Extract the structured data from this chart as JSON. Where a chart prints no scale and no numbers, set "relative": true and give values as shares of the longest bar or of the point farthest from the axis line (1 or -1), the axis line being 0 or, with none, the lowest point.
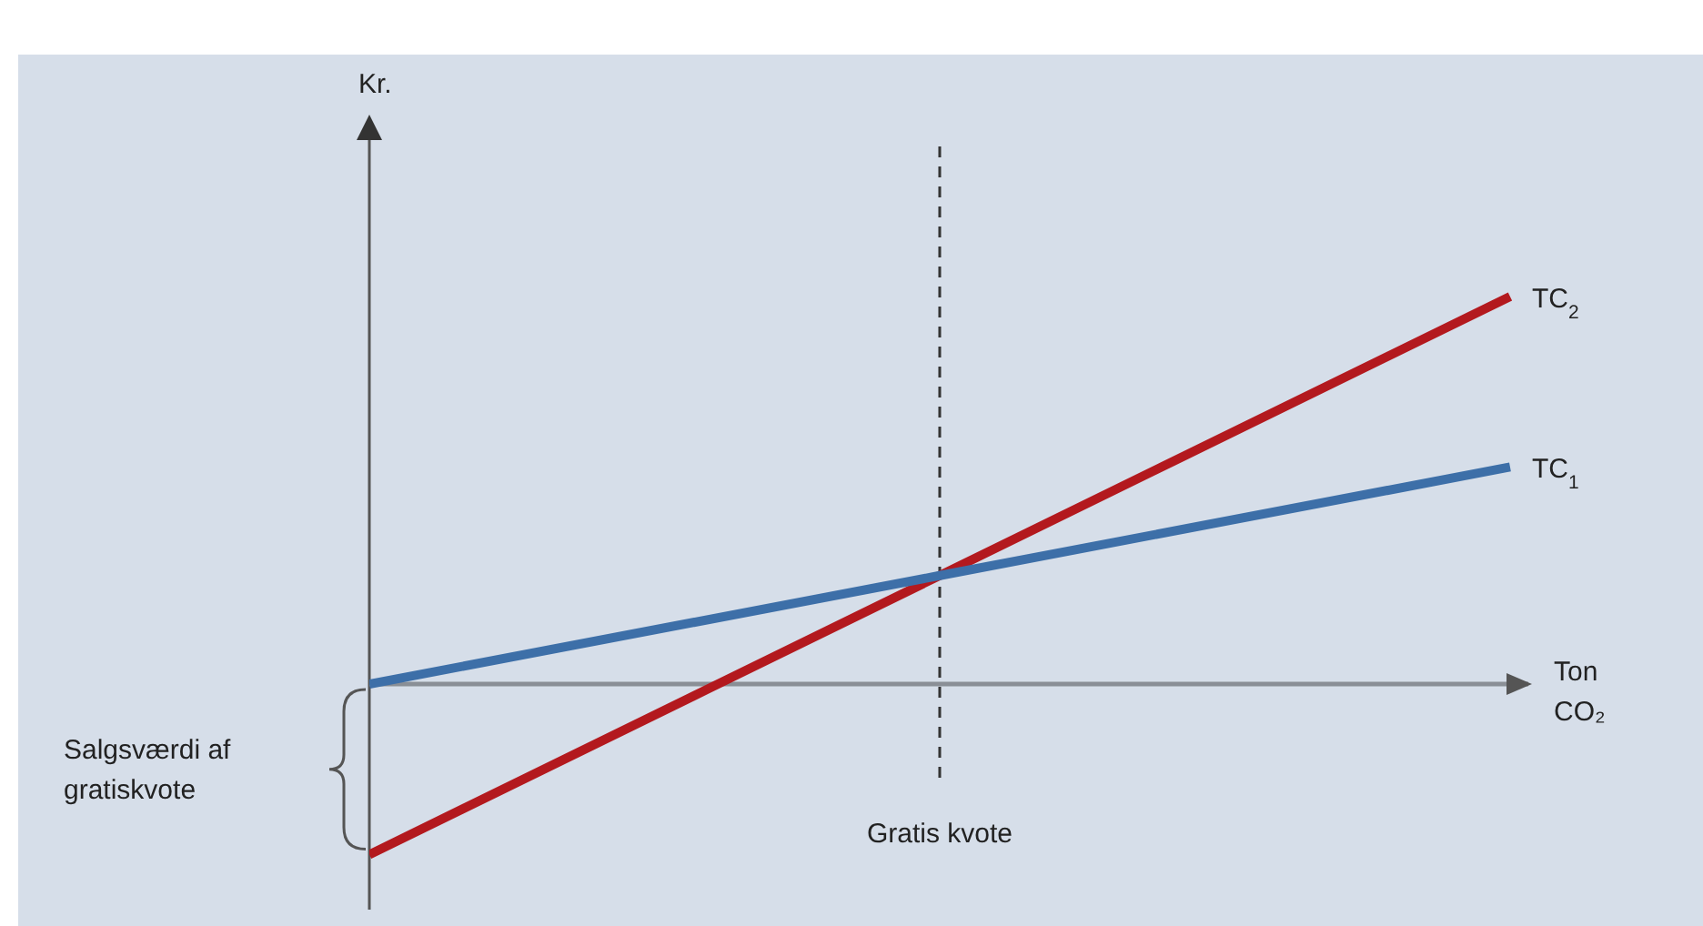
{
  "chart_data": {
    "type": "line",
    "relative": true,
    "xlabel": "Ton CO₂",
    "categories": [
      null,
      null,
      null
    ],
    "series": [
      {
        "name": "TC$_{2}$",
        "color": "#b3191e",
        "values": [
          -0.44,
          0.28,
          1
        ]
      },
      {
        "name": "TC$_{1}$",
        "color": "#3d6fa8",
        "values": [
          0,
          0.28,
          0.56
        ]
      }
    ],
    "ref_lines": [
      {
        "axis": "x",
        "label": "Gratis kvote",
        "line_style": "dashed",
        "color": "#333333"
      }
    ],
    "annotations": [
      "Kr.",
      "Salgsværdi af gratiskvote"
    ],
    "marker": "none",
    "line_style": "solid"
  }
}
